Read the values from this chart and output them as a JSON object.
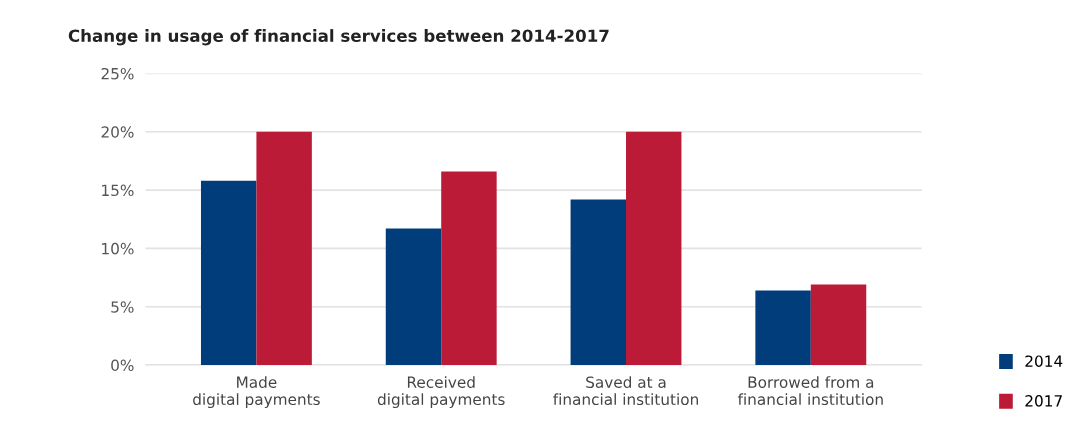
{
  "chart_data": {
    "type": "bar",
    "title": "Change in usage of financial services between 2014-2017",
    "categories": [
      "Made\ndigital payments",
      "Received\ndigital payments",
      "Saved at a\nfinancial institution",
      "Borrowed from a\nfinancial institution"
    ],
    "series": [
      {
        "name": "2014",
        "color": "#003d7a",
        "values": [
          15.8,
          11.7,
          14.2,
          6.4
        ]
      },
      {
        "name": "2017",
        "color": "#bb1b36",
        "values": [
          20,
          16.6,
          20,
          6.9
        ]
      }
    ],
    "ylim": [
      0,
      25
    ],
    "yticks": [
      {
        "value": 0,
        "label": "0%"
      },
      {
        "value": 5,
        "label": "5%"
      },
      {
        "value": 10,
        "label": "10%"
      },
      {
        "value": 15,
        "label": "15%"
      },
      {
        "value": 20,
        "label": "20%"
      },
      {
        "value": 25,
        "label": "25%"
      }
    ],
    "grid": "y",
    "legend": "bottom right"
  }
}
